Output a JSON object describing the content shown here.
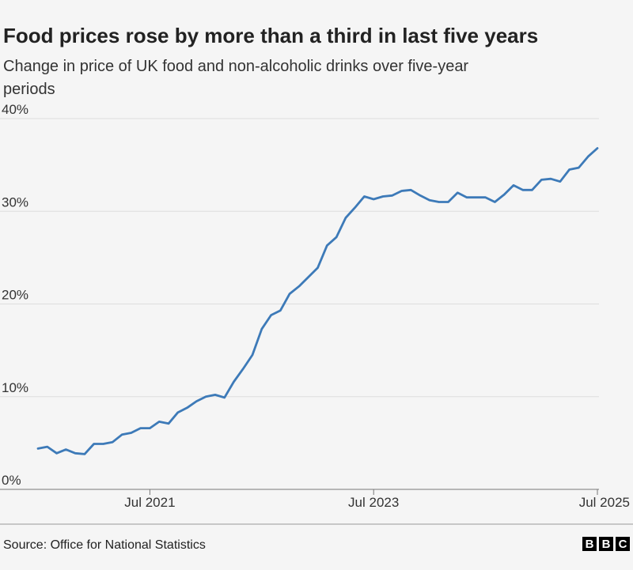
{
  "chart_data": {
    "type": "line",
    "title": "Food prices rose by more than a third in last five years",
    "subtitle": [
      "Change in price of UK food and non-alcoholic drinks over five-year",
      "periods"
    ],
    "categories": [
      null,
      null,
      null,
      null,
      null,
      null,
      null,
      null,
      null,
      null,
      null,
      null,
      "Jul 2021",
      null,
      null,
      null,
      null,
      null,
      null,
      null,
      null,
      null,
      null,
      null,
      null,
      null,
      null,
      null,
      null,
      null,
      null,
      null,
      null,
      null,
      null,
      null,
      "Jul 2023",
      null,
      null,
      null,
      null,
      null,
      null,
      null,
      null,
      null,
      null,
      null,
      null,
      null,
      null,
      null,
      null,
      null,
      null,
      null,
      null,
      null,
      null,
      null,
      "Jul 2025"
    ],
    "series": [
      {
        "name": "Food and non-alcoholic drinks",
        "color": "#3d7ab8",
        "values": [
          4.4,
          4.6,
          3.9,
          4.3,
          3.9,
          3.8,
          4.9,
          4.9,
          5.1,
          5.9,
          6.1,
          6.6,
          6.6,
          7.3,
          7.1,
          8.3,
          8.8,
          9.5,
          10.0,
          10.2,
          9.9,
          11.6,
          13.0,
          14.5,
          17.3,
          18.8,
          19.3,
          21.1,
          21.9,
          22.9,
          23.9,
          26.3,
          27.2,
          29.3,
          30.4,
          31.6,
          31.3,
          31.6,
          31.7,
          32.2,
          32.3,
          31.7,
          31.2,
          31.0,
          31.0,
          32.0,
          31.5,
          31.5,
          31.5,
          31.0,
          31.8,
          32.8,
          32.3,
          32.3,
          33.4,
          33.5,
          33.2,
          34.5,
          34.7,
          35.9,
          36.8
        ]
      }
    ],
    "ylim": [
      0,
      40
    ],
    "yticks": [
      {
        "value": 0,
        "label": "0%"
      },
      {
        "value": 10,
        "label": "10%"
      },
      {
        "value": 20,
        "label": "20%"
      },
      {
        "value": 30,
        "label": "30%"
      },
      {
        "value": 40,
        "label": "40%"
      }
    ],
    "grid": true,
    "source": "Source: Office for National Statistics",
    "logo": [
      "B",
      "B",
      "C"
    ]
  }
}
